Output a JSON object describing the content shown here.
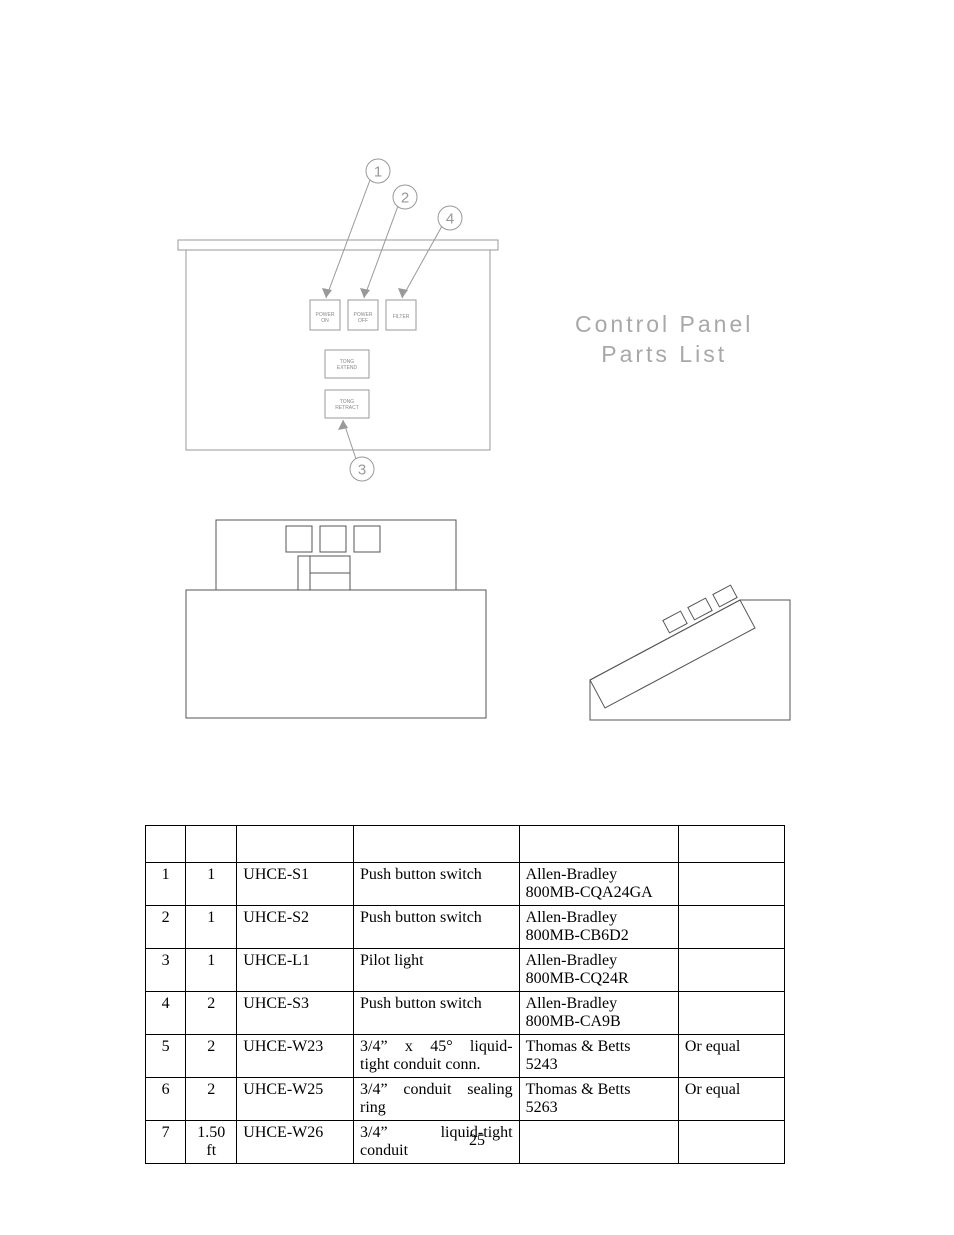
{
  "title": {
    "line1": "Control Panel",
    "line2": "Parts List"
  },
  "diagram": {
    "buttons": [
      {
        "key": "power_on",
        "line1": "POWER",
        "line2": "ON"
      },
      {
        "key": "power_off",
        "line1": "POWER",
        "line2": "OFF"
      },
      {
        "key": "filter",
        "line1": "FILTER",
        "line2": ""
      },
      {
        "key": "tong_extend",
        "line1": "TONG",
        "line2": "EXTEND"
      },
      {
        "key": "tong_retract",
        "line1": "TONG",
        "line2": "RETRACT"
      }
    ],
    "balloons": [
      {
        "num": "1"
      },
      {
        "num": "2"
      },
      {
        "num": "3"
      },
      {
        "num": "4"
      }
    ]
  },
  "table": {
    "rows": [
      {
        "item": "1",
        "qty": "1",
        "part": "UHCE-S1",
        "desc": "Push button switch",
        "mfg1": "Allen-Bradley",
        "mfg2": "800MB-CQA24GA",
        "rem": ""
      },
      {
        "item": "2",
        "qty": "1",
        "part": "UHCE-S2",
        "desc": "Push button switch",
        "mfg1": "Allen-Bradley",
        "mfg2": "800MB-CB6D2",
        "rem": ""
      },
      {
        "item": "3",
        "qty": "1",
        "part": "UHCE-L1",
        "desc": "Pilot light",
        "mfg1": "Allen-Bradley",
        "mfg2": "800MB-CQ24R",
        "rem": ""
      },
      {
        "item": "4",
        "qty": "2",
        "part": "UHCE-S3",
        "desc": "Push button switch",
        "mfg1": "Allen-Bradley",
        "mfg2": "800MB-CA9B",
        "rem": ""
      },
      {
        "item": "5",
        "qty": "2",
        "part": "UHCE-W23",
        "desc": "3/4” x 45° liquid-tight conduit conn.",
        "mfg1": "Thomas & Betts",
        "mfg2": "5243",
        "rem": "Or equal",
        "justify_first": true
      },
      {
        "item": "6",
        "qty": "2",
        "part": "UHCE-W25",
        "desc": "3/4” conduit sealing ring",
        "mfg1": "Thomas & Betts",
        "mfg2": "5263",
        "rem": "Or equal"
      },
      {
        "item": "7",
        "qty": "1.50 ft",
        "part": "UHCE-W26",
        "desc": "3/4”      liquid-tight conduit",
        "mfg1": "",
        "mfg2": "",
        "rem": "",
        "justify_first": true
      }
    ]
  },
  "page_number": "25"
}
